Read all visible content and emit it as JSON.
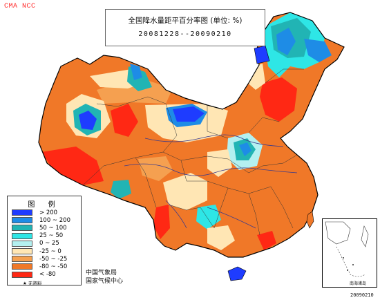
{
  "watermark": "CMA NCC",
  "title": {
    "line1": "全国降水量距平百分率图 (单位: %)",
    "line2": "20081228--20090210"
  },
  "legend": {
    "title": "图 例",
    "items": [
      {
        "label": "> 200",
        "color": "#1e3cff"
      },
      {
        "label": "100 ~ 200",
        "color": "#1e8ce6"
      },
      {
        "label": "50 ~ 100",
        "color": "#21b4b4"
      },
      {
        "label": "25 ~ 50",
        "color": "#2ee6e6"
      },
      {
        "label": "0 ~ 25",
        "color": "#b4f0f0"
      },
      {
        "label": "-25 ~ 0",
        "color": "#ffe6b4"
      },
      {
        "label": "-50 ~ -25",
        "color": "#f5a050"
      },
      {
        "label": "-80 ~ -50",
        "color": "#f07828"
      },
      {
        "label": "< -80",
        "color": "#ff2814"
      }
    ],
    "footnote": "★ 无资料"
  },
  "agency": {
    "line1": "中国气象局",
    "line2": "国家气候中心"
  },
  "inset_label": "南海诸岛",
  "corner_code": "20090210",
  "colors": {
    "background": "#ffffff",
    "border": "#000000",
    "river": "#3a3a8c"
  }
}
